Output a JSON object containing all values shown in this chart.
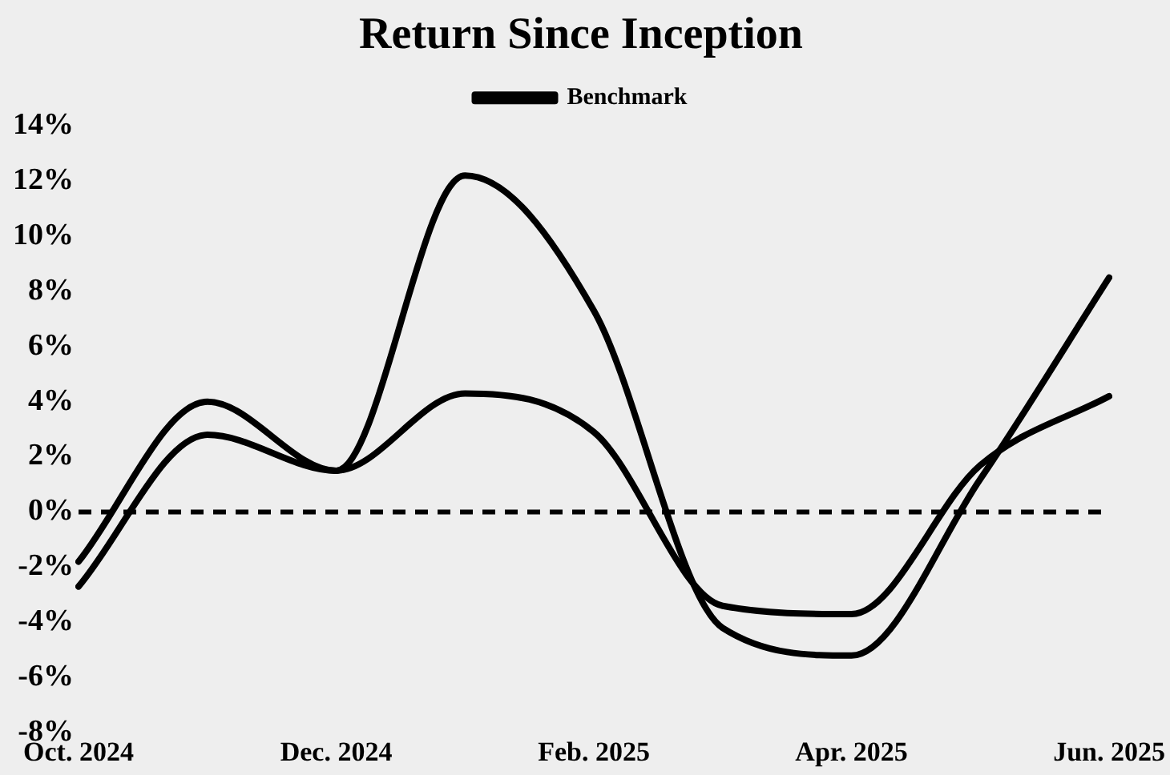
{
  "chart_data": {
    "type": "line",
    "title": "Return Since Inception",
    "categories": [
      "Oct. 2024",
      null,
      "Dec. 2024",
      null,
      "Feb. 2025",
      null,
      "Apr. 2025",
      null,
      "Jun. 2025"
    ],
    "series": [
      {
        "name": "Benchmark",
        "color": "#000000",
        "values": [
          -1.8,
          4,
          1.5,
          4.3,
          2.9,
          -3.4,
          -3.7,
          1.7,
          4.2
        ]
      },
      {
        "color": "#000000",
        "values": [
          -2.7,
          2.8,
          1.5,
          12.2,
          7.3,
          -4.2,
          -5.2,
          1.2,
          8.5
        ]
      }
    ],
    "ylim": [
      -8,
      14
    ],
    "yticks": [
      {
        "value": -8,
        "label": "-8%"
      },
      {
        "value": -6,
        "label": "-6%"
      },
      {
        "value": -4,
        "label": "-4%"
      },
      {
        "value": -2,
        "label": "-2%"
      },
      {
        "value": 0,
        "label": "0%"
      },
      {
        "value": 2,
        "label": "2%"
      },
      {
        "value": 4,
        "label": "4%"
      },
      {
        "value": 6,
        "label": "6%"
      },
      {
        "value": 8,
        "label": "8%"
      },
      {
        "value": 10,
        "label": "10%"
      },
      {
        "value": 12,
        "label": "12%"
      },
      {
        "value": 14,
        "label": "14%"
      }
    ],
    "ref_lines": [
      {
        "axis": "y",
        "value": 0,
        "color": "#000000",
        "line_style": "dashed"
      }
    ],
    "grid": false,
    "legend": "top",
    "marker": "none",
    "line_style": "solid"
  }
}
